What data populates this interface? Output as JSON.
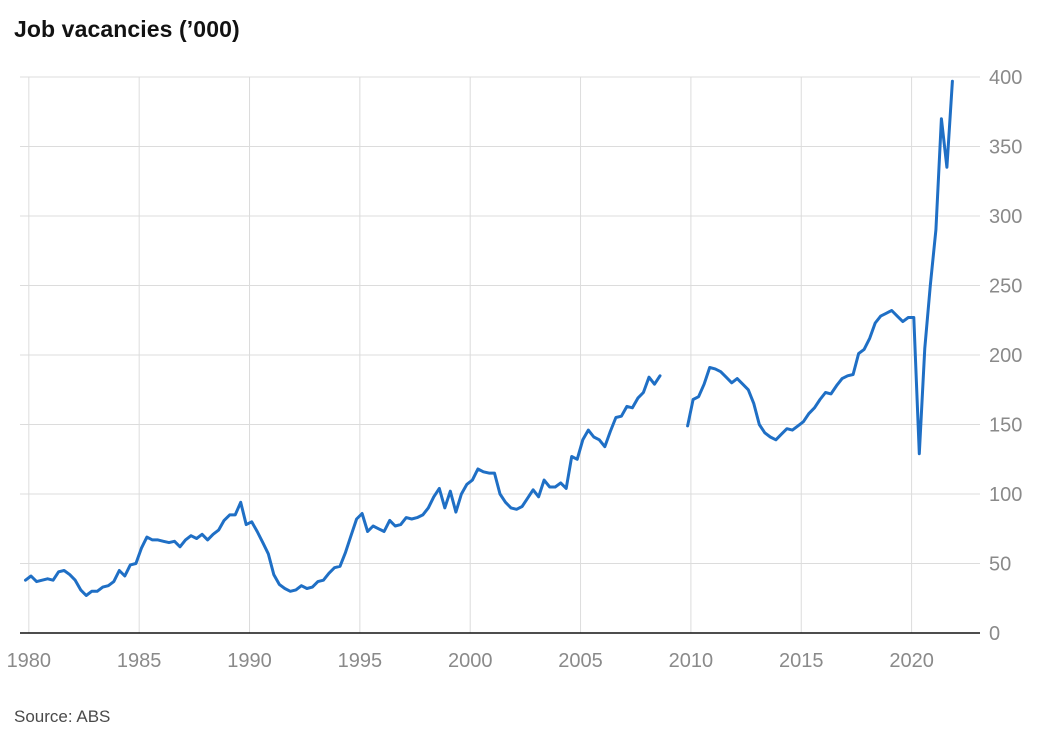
{
  "title": "Job vacancies (’000)",
  "source": "Source: ABS",
  "colors": {
    "line": "#1f6fc5",
    "grid": "#dcdcdc",
    "axis": "#121212",
    "tick_text": "#8a8a8a"
  },
  "chart_data": {
    "type": "line",
    "title": "Job vacancies (’000)",
    "xlabel": "",
    "ylabel": "",
    "xlim": [
      1979.6,
      2023.1
    ],
    "ylim": [
      0,
      400
    ],
    "x_ticks": [
      1980,
      1985,
      1990,
      1995,
      2000,
      2005,
      2010,
      2015,
      2020
    ],
    "y_ticks": [
      0,
      50,
      100,
      150,
      200,
      250,
      300,
      350,
      400
    ],
    "y_axis_side": "right",
    "grid": true,
    "legend": "none",
    "series": [
      {
        "segments": [
          [
            [
              1979.85,
              38
            ],
            [
              1980.1,
              41
            ],
            [
              1980.35,
              37
            ],
            [
              1980.6,
              38
            ],
            [
              1980.85,
              39
            ],
            [
              1981.1,
              38
            ],
            [
              1981.35,
              44
            ],
            [
              1981.6,
              45
            ],
            [
              1981.85,
              42
            ],
            [
              1982.1,
              38
            ],
            [
              1982.35,
              31
            ],
            [
              1982.6,
              27
            ],
            [
              1982.85,
              30
            ],
            [
              1983.1,
              30
            ],
            [
              1983.35,
              33
            ],
            [
              1983.6,
              34
            ],
            [
              1983.85,
              37
            ],
            [
              1984.1,
              45
            ],
            [
              1984.35,
              41
            ],
            [
              1984.6,
              49
            ],
            [
              1984.85,
              50
            ],
            [
              1985.1,
              61
            ],
            [
              1985.35,
              69
            ],
            [
              1985.6,
              67
            ],
            [
              1985.85,
              67
            ],
            [
              1986.1,
              66
            ],
            [
              1986.35,
              65
            ],
            [
              1986.6,
              66
            ],
            [
              1986.85,
              62
            ],
            [
              1987.1,
              67
            ],
            [
              1987.35,
              70
            ],
            [
              1987.6,
              68
            ],
            [
              1987.85,
              71
            ],
            [
              1988.1,
              67
            ],
            [
              1988.35,
              71
            ],
            [
              1988.6,
              74
            ],
            [
              1988.85,
              81
            ],
            [
              1989.1,
              85
            ],
            [
              1989.35,
              85
            ],
            [
              1989.6,
              94
            ],
            [
              1989.85,
              78
            ],
            [
              1990.1,
              80
            ],
            [
              1990.35,
              73
            ],
            [
              1990.6,
              65
            ],
            [
              1990.85,
              57
            ],
            [
              1991.1,
              42
            ],
            [
              1991.35,
              35
            ],
            [
              1991.6,
              32
            ],
            [
              1991.85,
              30
            ],
            [
              1992.1,
              31
            ],
            [
              1992.35,
              34
            ],
            [
              1992.6,
              32
            ],
            [
              1992.85,
              33
            ],
            [
              1993.1,
              37
            ],
            [
              1993.35,
              38
            ],
            [
              1993.6,
              43
            ],
            [
              1993.85,
              47
            ],
            [
              1994.1,
              48
            ],
            [
              1994.35,
              58
            ],
            [
              1994.6,
              70
            ],
            [
              1994.85,
              82
            ],
            [
              1995.1,
              86
            ],
            [
              1995.35,
              73
            ],
            [
              1995.6,
              77
            ],
            [
              1995.85,
              75
            ],
            [
              1996.1,
              73
            ],
            [
              1996.35,
              81
            ],
            [
              1996.6,
              77
            ],
            [
              1996.85,
              78
            ],
            [
              1997.1,
              83
            ],
            [
              1997.35,
              82
            ],
            [
              1997.6,
              83
            ],
            [
              1997.85,
              85
            ],
            [
              1998.1,
              90
            ],
            [
              1998.35,
              98
            ],
            [
              1998.6,
              104
            ],
            [
              1998.85,
              90
            ],
            [
              1999.1,
              102
            ],
            [
              1999.35,
              87
            ],
            [
              1999.6,
              100
            ],
            [
              1999.85,
              107
            ],
            [
              2000.1,
              110
            ],
            [
              2000.35,
              118
            ],
            [
              2000.6,
              116
            ],
            [
              2000.85,
              115
            ],
            [
              2001.1,
              115
            ],
            [
              2001.35,
              100
            ],
            [
              2001.6,
              94
            ],
            [
              2001.85,
              90
            ],
            [
              2002.1,
              89
            ],
            [
              2002.35,
              91
            ],
            [
              2002.6,
              97
            ],
            [
              2002.85,
              103
            ],
            [
              2003.1,
              98
            ],
            [
              2003.35,
              110
            ],
            [
              2003.6,
              105
            ],
            [
              2003.85,
              105
            ],
            [
              2004.1,
              108
            ],
            [
              2004.35,
              104
            ],
            [
              2004.6,
              127
            ],
            [
              2004.85,
              125
            ],
            [
              2005.1,
              139
            ],
            [
              2005.35,
              146
            ],
            [
              2005.6,
              141
            ],
            [
              2005.85,
              139
            ],
            [
              2006.1,
              134
            ],
            [
              2006.35,
              145
            ],
            [
              2006.6,
              155
            ],
            [
              2006.85,
              156
            ],
            [
              2007.1,
              163
            ],
            [
              2007.35,
              162
            ],
            [
              2007.6,
              169
            ],
            [
              2007.85,
              173
            ],
            [
              2008.1,
              184
            ],
            [
              2008.35,
              179
            ],
            [
              2008.6,
              185
            ]
          ],
          [
            [
              2009.85,
              149
            ],
            [
              2010.1,
              168
            ],
            [
              2010.35,
              170
            ],
            [
              2010.6,
              179
            ],
            [
              2010.85,
              191
            ],
            [
              2011.1,
              190
            ],
            [
              2011.35,
              188
            ],
            [
              2011.6,
              184
            ],
            [
              2011.85,
              180
            ],
            [
              2012.1,
              183
            ],
            [
              2012.35,
              179
            ],
            [
              2012.6,
              175
            ],
            [
              2012.85,
              165
            ],
            [
              2013.1,
              150
            ],
            [
              2013.35,
              144
            ],
            [
              2013.6,
              141
            ],
            [
              2013.85,
              139
            ],
            [
              2014.1,
              143
            ],
            [
              2014.35,
              147
            ],
            [
              2014.6,
              146
            ],
            [
              2014.85,
              149
            ],
            [
              2015.1,
              152
            ],
            [
              2015.35,
              158
            ],
            [
              2015.6,
              162
            ],
            [
              2015.85,
              168
            ],
            [
              2016.1,
              173
            ],
            [
              2016.35,
              172
            ],
            [
              2016.6,
              178
            ],
            [
              2016.85,
              183
            ],
            [
              2017.1,
              185
            ],
            [
              2017.35,
              186
            ],
            [
              2017.6,
              201
            ],
            [
              2017.85,
              204
            ],
            [
              2018.1,
              212
            ],
            [
              2018.35,
              223
            ],
            [
              2018.6,
              228
            ],
            [
              2018.85,
              230
            ],
            [
              2019.1,
              232
            ],
            [
              2019.35,
              228
            ],
            [
              2019.6,
              224
            ],
            [
              2019.85,
              227
            ],
            [
              2020.1,
              227
            ],
            [
              2020.35,
              129
            ],
            [
              2020.6,
              205
            ],
            [
              2020.85,
              250
            ],
            [
              2021.1,
              290
            ],
            [
              2021.35,
              370
            ],
            [
              2021.6,
              335
            ],
            [
              2021.85,
              397
            ]
          ]
        ]
      }
    ]
  }
}
